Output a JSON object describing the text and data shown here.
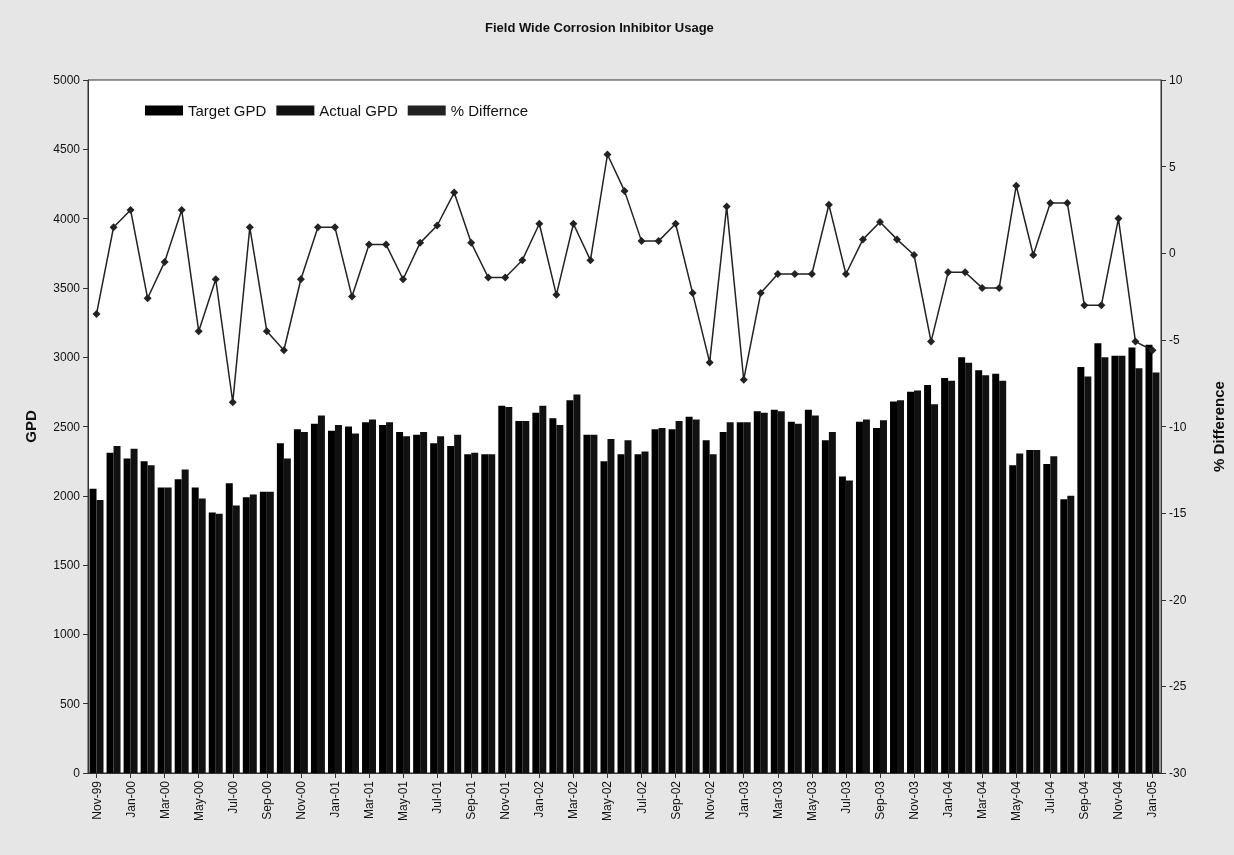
{
  "chart_data": {
    "type": "bar",
    "title": "Field Wide Corrosion Inhibitor Usage",
    "ylabel": "GPD",
    "y2label": "% Difference",
    "categories": [
      "Nov-99",
      null,
      "Jan-00",
      null,
      "Mar-00",
      null,
      "May-00",
      null,
      "Jul-00",
      null,
      "Sep-00",
      null,
      "Nov-00",
      null,
      "Jan-01",
      null,
      "Mar-01",
      null,
      "May-01",
      null,
      "Jul-01",
      null,
      "Sep-01",
      null,
      "Nov-01",
      null,
      "Jan-02",
      null,
      "Mar-02",
      null,
      "May-02",
      null,
      "Jul-02",
      null,
      "Sep-02",
      null,
      "Nov-02",
      null,
      "Jan-03",
      null,
      "Mar-03",
      null,
      "May-03",
      null,
      "Jul-03",
      null,
      "Sep-03",
      null,
      "Nov-03",
      null,
      "Jan-04",
      null,
      "Mar-04",
      null,
      "May-04",
      null,
      "Jul-04",
      null,
      "Sep-04",
      null,
      "Nov-04",
      null,
      "Jan-05"
    ],
    "series": [
      {
        "name": "Target GPD",
        "color": "#000000",
        "values": [
          2050,
          2310,
          2270,
          2250,
          2060,
          2120,
          2060,
          1880,
          2090,
          1990,
          2030,
          2380,
          2480,
          2520,
          2470,
          2500,
          2530,
          2510,
          2460,
          2440,
          2380,
          2360,
          2300,
          2300,
          2650,
          2540,
          2600,
          2560,
          2690,
          2440,
          2250,
          2300,
          2300,
          2480,
          2480,
          2570,
          2400,
          2460,
          2530,
          2610,
          2620,
          2535,
          2620,
          2400,
          2140,
          2535,
          2490,
          2680,
          2750,
          2800,
          2850,
          3000,
          2905,
          2880,
          2220,
          2330,
          2230,
          1975,
          2930,
          3100,
          3010,
          3070,
          3090
        ]
      },
      {
        "name": "Actual GPD",
        "color": "#111111",
        "values": [
          1970,
          2360,
          2340,
          2220,
          2060,
          2190,
          1980,
          1870,
          1930,
          2010,
          2030,
          2270,
          2460,
          2580,
          2510,
          2450,
          2550,
          2530,
          2430,
          2460,
          2430,
          2440,
          2310,
          2300,
          2640,
          2540,
          2650,
          2510,
          2730,
          2440,
          2410,
          2400,
          2320,
          2490,
          2540,
          2550,
          2300,
          2530,
          2530,
          2600,
          2610,
          2520,
          2580,
          2460,
          2110,
          2550,
          2545,
          2690,
          2760,
          2660,
          2830,
          2960,
          2870,
          2830,
          2305,
          2330,
          2285,
          2000,
          2860,
          3000,
          3010,
          2920,
          2890
        ]
      },
      {
        "name": "% Differnce",
        "type": "line",
        "axis": "y2",
        "color": "#222222",
        "marker": "diamond",
        "values": [
          -3.5,
          1.5,
          2.5,
          -2.6,
          -0.5,
          2.5,
          -4.5,
          -1.5,
          -8.6,
          1.5,
          -4.5,
          -5.6,
          -1.5,
          1.5,
          1.5,
          -2.5,
          0.5,
          0.5,
          -1.5,
          0.6,
          1.6,
          3.5,
          0.6,
          -1.4,
          -1.4,
          -0.4,
          1.7,
          -2.4,
          1.7,
          -0.4,
          5.7,
          3.6,
          0.7,
          0.7,
          1.7,
          -2.3,
          -6.3,
          2.7,
          -7.3,
          -2.3,
          -1.2,
          -1.2,
          -1.2,
          2.8,
          -1.2,
          0.8,
          1.8,
          0.8,
          -0.1,
          -5.1,
          -1.1,
          -1.1,
          -2.0,
          -2.0,
          3.9,
          -0.1,
          2.9,
          2.9,
          -3.0,
          -3.0,
          2.0,
          -5.1,
          -5.6
        ]
      }
    ],
    "ylim": [
      0,
      5000
    ],
    "yticks": [
      0,
      500,
      1000,
      1500,
      2000,
      2500,
      3000,
      3500,
      4000,
      4500,
      5000
    ],
    "y2lim": [
      -30,
      10
    ],
    "y2ticks": [
      -30,
      -25,
      -20,
      -15,
      -10,
      -5,
      0,
      5,
      10
    ],
    "grid": false,
    "legend": "top left"
  }
}
